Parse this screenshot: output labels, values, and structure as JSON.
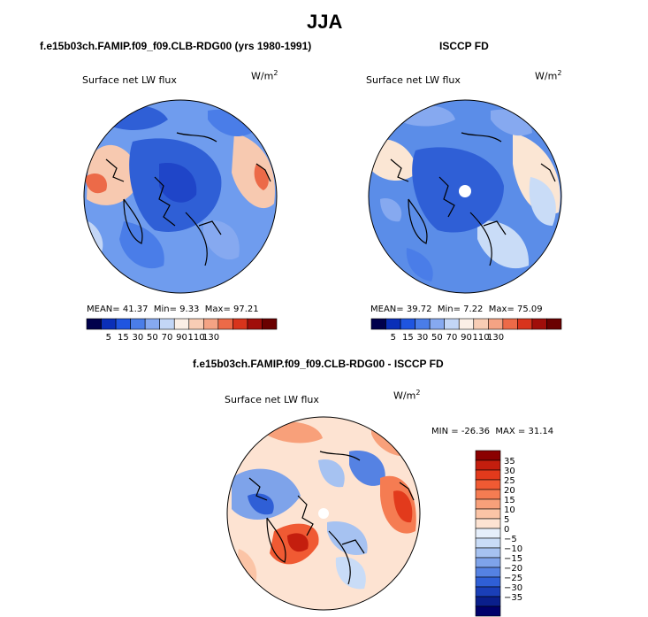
{
  "season": "JJA",
  "colors": {
    "ocean_blue": "#5b8de8",
    "deep_blue": "#2f5fd6",
    "pale_blue": "#c9dcf7",
    "cream": "#fbe6d4",
    "salmon": "#f7b495",
    "red": "#e85a3a",
    "outline": "#000000"
  },
  "chart_data": [
    {
      "type": "heatmap",
      "title": "f.e15b03ch.FAMIP.f09_f09.CLB-RDG00 (yrs 1980-1991)",
      "subtitle": "Surface net LW flux",
      "units": "W/m",
      "units_exp": "2",
      "stats": {
        "mean_label": "MEAN=",
        "mean": "41.37",
        "min_label": "Min=",
        "min": "9.33",
        "max_label": "Max=",
        "max": "97.21"
      },
      "levels": [
        "5",
        "15",
        "30",
        "50",
        "70",
        "90",
        "110",
        "130"
      ],
      "colorbar": [
        "#00004c",
        "#0a2fb8",
        "#1f55e0",
        "#4a7de8",
        "#86a9f0",
        "#c3d6f6",
        "#fbefe6",
        "#f8cdb5",
        "#f4a384",
        "#ec6a48",
        "#d8341c",
        "#a00e0a",
        "#6a0000"
      ]
    },
    {
      "type": "heatmap",
      "title": "ISCCP FD",
      "subtitle": "Surface net LW flux",
      "units": "W/m",
      "units_exp": "2",
      "stats": {
        "mean_label": "MEAN=",
        "mean": "39.72",
        "min_label": "Min=",
        "min": "7.22",
        "max_label": "Max=",
        "max": "75.09"
      },
      "levels": [
        "5",
        "15",
        "30",
        "50",
        "70",
        "90",
        "110",
        "130"
      ],
      "colorbar": [
        "#00004c",
        "#0a2fb8",
        "#1f55e0",
        "#4a7de8",
        "#86a9f0",
        "#c3d6f6",
        "#fbefe6",
        "#f8cdb5",
        "#f4a384",
        "#ec6a48",
        "#d8341c",
        "#a00e0a",
        "#6a0000"
      ]
    },
    {
      "type": "heatmap",
      "title": "f.e15b03ch.FAMIP.f09_f09.CLB-RDG00 - ISCCP FD",
      "subtitle": "Surface net LW flux",
      "units": "W/m",
      "units_exp": "2",
      "stats": {
        "min_label": "MIN =",
        "min": "-26.36",
        "max_label": "MAX =",
        "max": "31.14"
      },
      "levels": [
        "35",
        "30",
        "25",
        "20",
        "15",
        "10",
        "5",
        "0",
        "−5",
        "−10",
        "−15",
        "−20",
        "−25",
        "−30",
        "−35"
      ],
      "colorbar": [
        "#8b0000",
        "#c41e0e",
        "#e23a1c",
        "#f05a33",
        "#f57c52",
        "#f8a07a",
        "#fbc4a6",
        "#fde3d2",
        "#e6effb",
        "#c9dcf7",
        "#a6c2f1",
        "#7ea3ea",
        "#5582e3",
        "#2f5fd6",
        "#1a3fb8",
        "#0a1f8c",
        "#00006a"
      ]
    }
  ]
}
